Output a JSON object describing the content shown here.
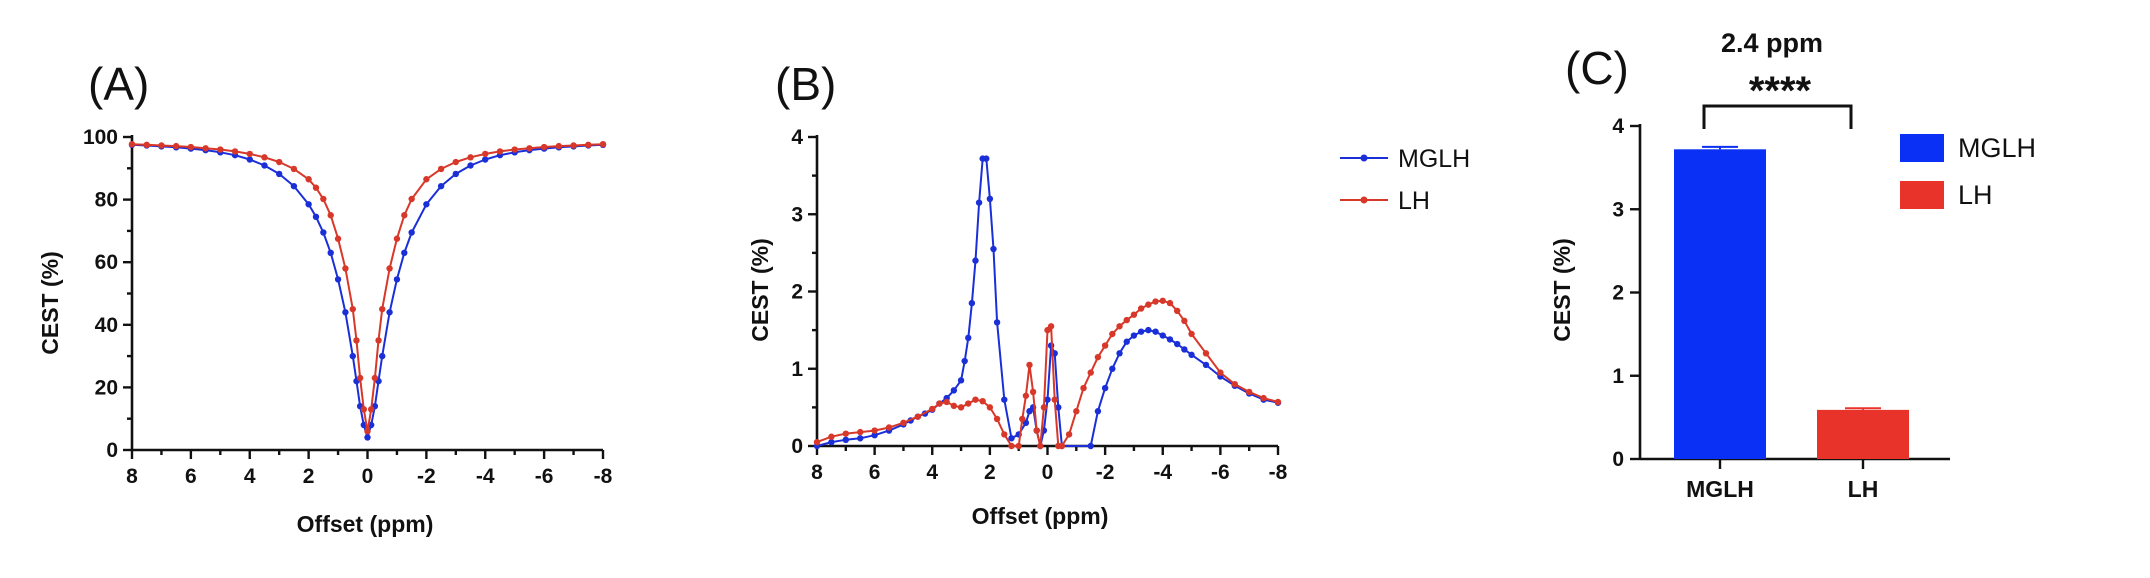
{
  "colors": {
    "mglh": "#1a2fd8",
    "lh": "#d8382a",
    "mglh_bar": "#0a2ff5",
    "lh_bar": "#e8332a"
  },
  "panels": {
    "a": {
      "letter": "(A)"
    },
    "b": {
      "letter": "(B)"
    },
    "c": {
      "letter": "(C)"
    }
  },
  "chart_data": [
    {
      "type": "line",
      "panel": "(A)",
      "xlabel": "Offset (ppm)",
      "ylabel": "CEST (%)",
      "xlim": [
        8,
        -8
      ],
      "ylim": [
        0,
        100
      ],
      "x_ticks": [
        "8",
        "6",
        "4",
        "2",
        "0",
        "-2",
        "-4",
        "-6",
        "-8"
      ],
      "y_ticks": [
        "0",
        "20",
        "40",
        "60",
        "80",
        "100"
      ],
      "series": [
        {
          "name": "MGLH",
          "x": [
            8,
            7.5,
            7,
            6.5,
            6,
            5.5,
            5,
            4.5,
            4,
            3.5,
            3,
            2.5,
            2,
            1.75,
            1.5,
            1.25,
            1,
            0.75,
            0.5,
            0.375,
            0.25,
            0.125,
            0,
            -0.125,
            -0.25,
            -0.375,
            -0.5,
            -0.75,
            -1,
            -1.25,
            -1.5,
            -2,
            -2.5,
            -3,
            -3.5,
            -4,
            -4.5,
            -5,
            -5.5,
            -6,
            -6.5,
            -7,
            -7.5,
            -8
          ],
          "y": [
            97.5,
            97.3,
            97,
            96.7,
            96.3,
            95.8,
            95.1,
            94.2,
            92.8,
            90.9,
            88.2,
            84.3,
            78.5,
            74.5,
            69.5,
            63,
            54.5,
            44,
            30,
            22,
            14,
            8,
            4,
            8,
            14,
            22,
            30,
            44,
            54.5,
            63,
            69.5,
            78.5,
            84.3,
            88.2,
            90.9,
            92.8,
            94.2,
            95.1,
            95.8,
            96.3,
            96.7,
            97,
            97.3,
            97.5
          ]
        },
        {
          "name": "LH",
          "x": [
            8,
            7.5,
            7,
            6.5,
            6,
            5.5,
            5,
            4.5,
            4,
            3.5,
            3,
            2.5,
            2,
            1.75,
            1.5,
            1.25,
            1,
            0.75,
            0.5,
            0.375,
            0.25,
            0.125,
            0,
            -0.125,
            -0.25,
            -0.375,
            -0.5,
            -0.75,
            -1,
            -1.25,
            -1.5,
            -2,
            -2.5,
            -3,
            -3.5,
            -4,
            -4.5,
            -5,
            -5.5,
            -6,
            -6.5,
            -7,
            -7.5,
            -8
          ],
          "y": [
            97.7,
            97.5,
            97.3,
            97.1,
            96.8,
            96.4,
            96,
            95.4,
            94.6,
            93.5,
            92,
            89.8,
            86.5,
            83.8,
            80.2,
            75,
            67.5,
            58,
            45,
            35,
            23,
            13,
            6,
            13,
            23,
            35,
            45,
            58,
            67.5,
            75,
            80.2,
            86.5,
            89.8,
            92,
            93.5,
            94.6,
            95.4,
            96,
            96.4,
            96.8,
            97.1,
            97.3,
            97.5,
            97.7
          ]
        }
      ]
    },
    {
      "type": "line",
      "panel": "(B)",
      "xlabel": "Offset (ppm)",
      "ylabel": "CEST (%)",
      "xlim": [
        8,
        -8
      ],
      "ylim": [
        0,
        4
      ],
      "x_ticks": [
        "8",
        "6",
        "4",
        "2",
        "0",
        "-2",
        "-4",
        "-6",
        "-8"
      ],
      "y_ticks": [
        "0",
        "1",
        "2",
        "3",
        "4"
      ],
      "legend": [
        "MGLH",
        "LH"
      ],
      "series": [
        {
          "name": "MGLH",
          "x": [
            8,
            7.5,
            7,
            6.5,
            6,
            5.5,
            5,
            4.75,
            4.5,
            4.25,
            4,
            3.75,
            3.5,
            3.25,
            3,
            2.875,
            2.75,
            2.625,
            2.5,
            2.375,
            2.25,
            2.125,
            2,
            1.875,
            1.75,
            1.5,
            1.25,
            1,
            0.75,
            0.625,
            0.5,
            0.375,
            0.25,
            0.125,
            0,
            -0.125,
            -0.25,
            -0.375,
            -0.5,
            -1.5,
            -1.75,
            -2,
            -2.25,
            -2.5,
            -2.75,
            -3,
            -3.25,
            -3.5,
            -3.75,
            -4,
            -4.25,
            -4.5,
            -4.75,
            -5,
            -5.5,
            -6,
            -6.5,
            -7,
            -7.5,
            -8
          ],
          "y": [
            0,
            0.05,
            0.08,
            0.1,
            0.14,
            0.2,
            0.28,
            0.33,
            0.38,
            0.42,
            0.47,
            0.55,
            0.62,
            0.72,
            0.85,
            1.1,
            1.4,
            1.85,
            2.4,
            3.15,
            3.72,
            3.72,
            3.2,
            2.55,
            1.6,
            0.6,
            0.1,
            0.15,
            0.3,
            0.45,
            0.5,
            0.2,
            0,
            0.2,
            0.6,
            1.3,
            1.2,
            0.5,
            0,
            0,
            0.45,
            0.75,
            1,
            1.2,
            1.35,
            1.43,
            1.48,
            1.5,
            1.48,
            1.43,
            1.38,
            1.32,
            1.25,
            1.18,
            1.05,
            0.9,
            0.78,
            0.68,
            0.6,
            0.56
          ]
        },
        {
          "name": "LH",
          "x": [
            8,
            7.5,
            7,
            6.5,
            6,
            5.5,
            5,
            4.5,
            4,
            3.75,
            3.5,
            3.25,
            3,
            2.75,
            2.5,
            2.25,
            2,
            1.75,
            1.5,
            1.25,
            1,
            0.875,
            0.75,
            0.625,
            0.5,
            0.375,
            0.25,
            0.125,
            0,
            -0.125,
            -0.25,
            -0.375,
            -0.5,
            -0.75,
            -1,
            -1.25,
            -1.5,
            -1.75,
            -2,
            -2.25,
            -2.5,
            -2.75,
            -3,
            -3.25,
            -3.5,
            -3.75,
            -4,
            -4.25,
            -4.5,
            -4.75,
            -5,
            -5.5,
            -6,
            -6.5,
            -7,
            -7.5,
            -8
          ],
          "y": [
            0.05,
            0.12,
            0.16,
            0.18,
            0.2,
            0.24,
            0.3,
            0.38,
            0.48,
            0.55,
            0.57,
            0.52,
            0.5,
            0.55,
            0.6,
            0.58,
            0.5,
            0.35,
            0.15,
            0,
            0,
            0.35,
            0.65,
            1.05,
            0.7,
            0.2,
            0,
            0.5,
            1.5,
            1.55,
            0.6,
            0,
            0,
            0.15,
            0.45,
            0.75,
            0.95,
            1.15,
            1.3,
            1.45,
            1.55,
            1.63,
            1.7,
            1.78,
            1.83,
            1.87,
            1.88,
            1.85,
            1.75,
            1.62,
            1.45,
            1.2,
            0.95,
            0.8,
            0.7,
            0.62,
            0.57
          ]
        }
      ]
    },
    {
      "type": "bar",
      "panel": "(C)",
      "title": "2.4 ppm",
      "ylabel": "CEST (%)",
      "categories": [
        "MGLH",
        "LH"
      ],
      "values": [
        3.72,
        0.59
      ],
      "errors": [
        0.03,
        0.02
      ],
      "ylim": [
        0,
        4
      ],
      "y_ticks": [
        "0",
        "1",
        "2",
        "3",
        "4"
      ],
      "legend": [
        "MGLH",
        "LH"
      ],
      "significance": "****"
    }
  ]
}
